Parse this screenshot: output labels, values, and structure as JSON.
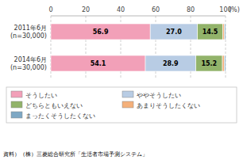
{
  "chart_data": {
    "type": "bar",
    "orientation": "horizontal",
    "stacked": true,
    "categories": [
      "2011年6月\n(n=30,000)",
      "2014年6月\n(n=30,000)"
    ],
    "series": [
      {
        "name": "そうしたい",
        "color": "#f2a0b8",
        "values": [
          56.9,
          54.1
        ],
        "data_labels": true
      },
      {
        "name": "ややそうしたい",
        "color": "#b8cce4",
        "values": [
          27.0,
          28.9
        ],
        "value_labels": [
          "27.0",
          "28.9"
        ],
        "data_labels": true
      },
      {
        "name": "どちらともいえない",
        "color": "#92b36a",
        "values": [
          14.5,
          15.2
        ],
        "data_labels": true
      },
      {
        "name": "あまりそうしたくない",
        "color": "#f4b07a",
        "values": [
          1.0,
          1.2
        ],
        "data_labels": false
      },
      {
        "name": "まったくそうしたくない",
        "color": "#7ea8c4",
        "values": [
          0.6,
          0.6
        ],
        "data_labels": false
      }
    ],
    "xlim": [
      0,
      100
    ],
    "xticks": [
      0,
      20,
      40,
      60,
      80,
      100
    ],
    "xlabel": "(%)",
    "grid": true,
    "legend": "bottom",
    "source": "資料）（株）三菱総合研究所「生活者市場予測システム」"
  }
}
